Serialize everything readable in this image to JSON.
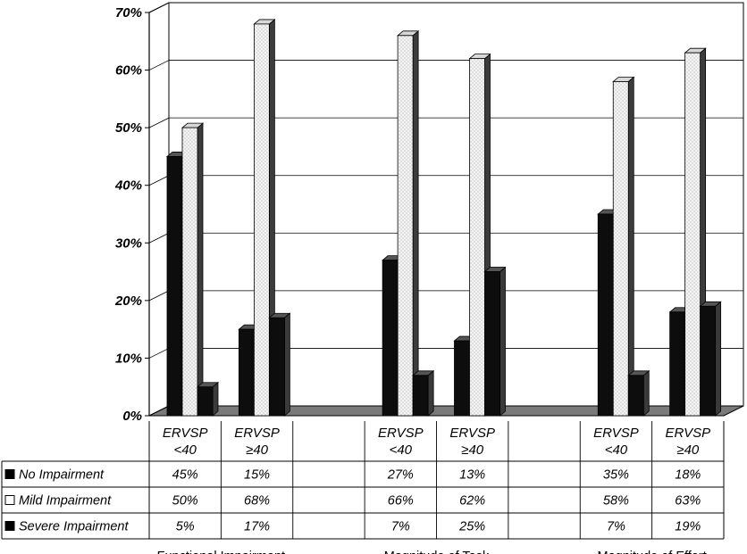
{
  "chart_data": {
    "type": "bar",
    "y_ticks": [
      "0%",
      "10%",
      "20%",
      "30%",
      "40%",
      "50%",
      "60%",
      "70%"
    ],
    "ylim": [
      0,
      70
    ],
    "grid": true,
    "legend_placement": "left of data table",
    "groups": [
      "Functional Impairment",
      "Magnitude of Task",
      "Magnitude of Effort"
    ],
    "categories": [
      {
        "name": "ERVSP",
        "sub": "<40"
      },
      {
        "name": "ERVSP",
        "sub": "≥40"
      }
    ],
    "series": [
      {
        "name": "No Impairment",
        "color": "#111111",
        "values": [
          [
            45,
            15
          ],
          [
            27,
            13
          ],
          [
            35,
            18
          ]
        ],
        "labels": [
          [
            "45%",
            "15%"
          ],
          [
            "27%",
            "13%"
          ],
          [
            "35%",
            "18%"
          ]
        ]
      },
      {
        "name": "Mild Impairment",
        "color": "#f2f2f2",
        "pattern": "dotted",
        "values": [
          [
            50,
            68
          ],
          [
            66,
            62
          ],
          [
            58,
            63
          ]
        ],
        "labels": [
          [
            "50%",
            "68%"
          ],
          [
            "66%",
            "62%"
          ],
          [
            "58%",
            "63%"
          ]
        ]
      },
      {
        "name": "Severe Impairment",
        "color": "#111111",
        "values": [
          [
            5,
            17
          ],
          [
            7,
            25
          ],
          [
            7,
            19
          ]
        ],
        "labels": [
          [
            "5%",
            "17%"
          ],
          [
            "7%",
            "25%"
          ],
          [
            "7%",
            "19%"
          ]
        ]
      }
    ]
  }
}
